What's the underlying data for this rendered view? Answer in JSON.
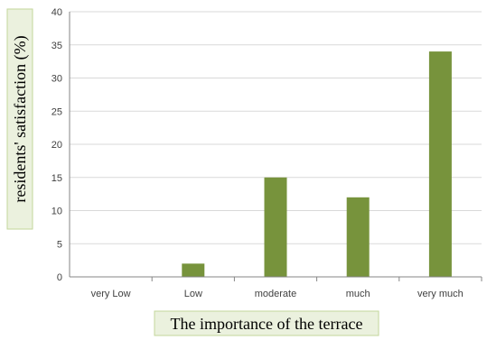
{
  "chart_data": {
    "type": "bar",
    "categories": [
      "very Low",
      "Low",
      "moderate",
      "much",
      "very much"
    ],
    "values": [
      0,
      2,
      15,
      12,
      34
    ],
    "xlabel": "The importance of the terrace",
    "ylabel": "residents' satisfaction (%)",
    "ylim": [
      0,
      40
    ],
    "yticks": [
      0,
      5,
      10,
      15,
      20,
      25,
      30,
      35,
      40
    ],
    "grid": true,
    "legend": "none",
    "colors": {
      "bar": "#77933c",
      "label_box": "#ebf1de"
    }
  }
}
